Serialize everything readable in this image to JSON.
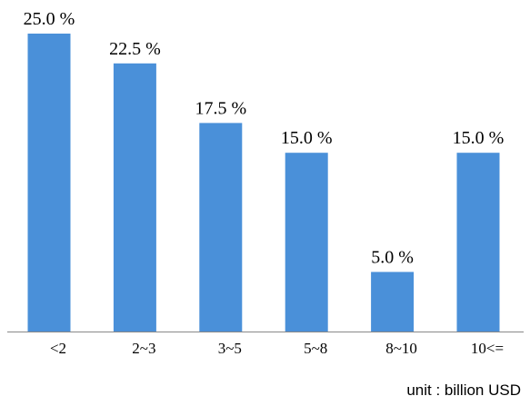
{
  "chart_data": {
    "type": "bar",
    "categories": [
      "<2",
      "2~3",
      "3~5",
      "5~8",
      "8~10",
      "10<="
    ],
    "values": [
      25.0,
      22.5,
      17.5,
      15.0,
      5.0,
      15.0
    ],
    "data_labels": [
      "25.0 %",
      "22.5 %",
      "17.5 %",
      "15.0 %",
      "5.0 %",
      "15.0 %"
    ],
    "title": "",
    "xlabel": "",
    "ylabel": "",
    "ylim": [
      0,
      25
    ],
    "grid": false,
    "legend": "none",
    "bar_color": "#4A90D9",
    "unit_note": "unit : billion USD"
  }
}
